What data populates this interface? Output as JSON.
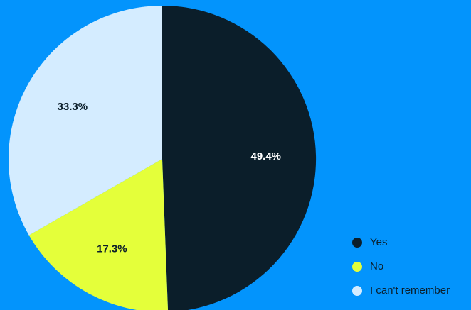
{
  "chart_data": {
    "type": "pie",
    "title": "",
    "legend_position": "bottom-right",
    "slices": [
      {
        "label": "Yes",
        "value": 49.4,
        "display": "49.4%",
        "color": "#0B1E2A",
        "label_color": "#FFFFFF"
      },
      {
        "label": "No",
        "value": 17.3,
        "display": "17.3%",
        "color": "#E4FF3A",
        "label_color": "#0B1E2A"
      },
      {
        "label": "I can't remember",
        "value": 33.3,
        "display": "33.3%",
        "color": "#D4ECFF",
        "label_color": "#0B1E2A"
      }
    ],
    "background": "#0394FC"
  }
}
